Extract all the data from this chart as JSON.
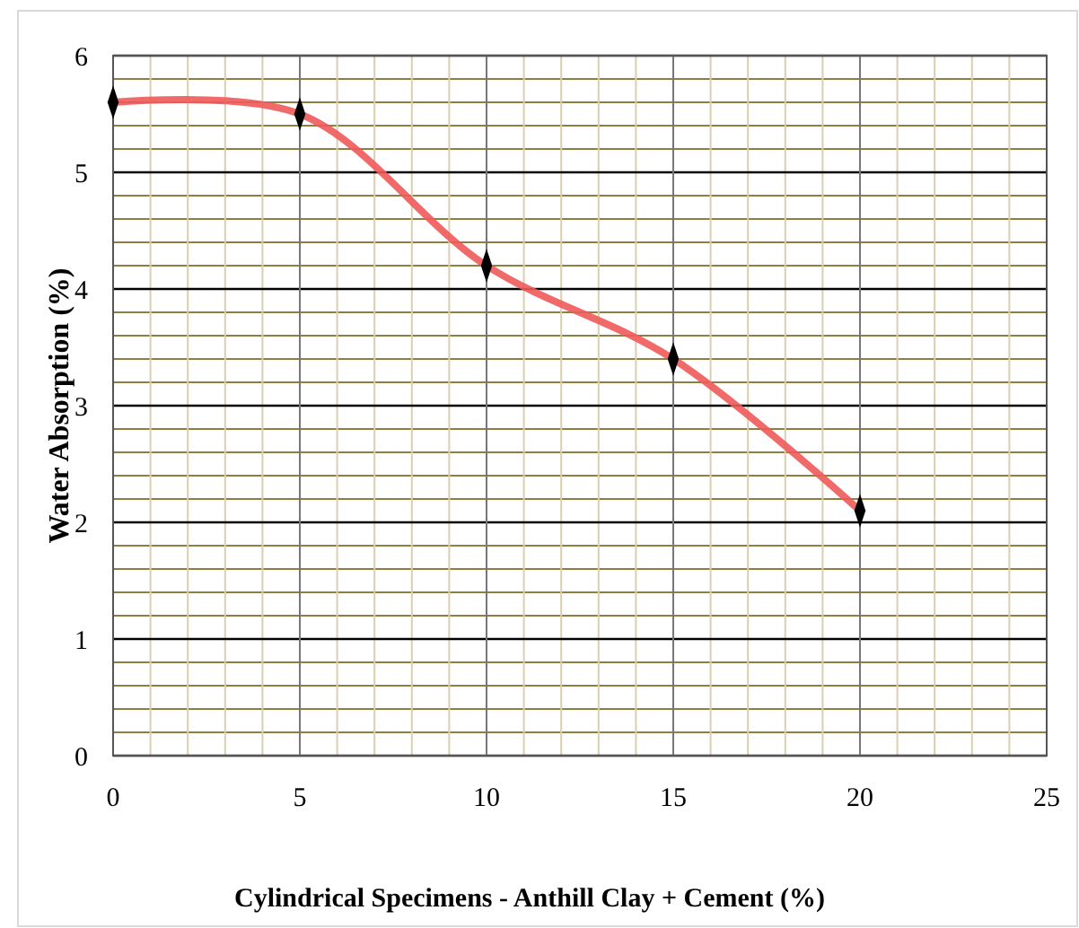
{
  "chart_data": {
    "type": "line",
    "xlabel": "Cylindrical Specimens - Anthill Clay +  Cement (%)",
    "ylabel": "Water Absorption (%)",
    "x": [
      0,
      5,
      10,
      15,
      20
    ],
    "series": [
      {
        "color": "#f05a5a",
        "values": [
          5.6,
          5.5,
          4.2,
          3.4,
          2.1
        ]
      }
    ],
    "xlim": [
      0,
      25
    ],
    "xticks": [
      0,
      {
        "value": 1,
        "label": null
      },
      {
        "value": 2,
        "label": null
      },
      {
        "value": 3,
        "label": null
      },
      {
        "value": 4,
        "label": null
      },
      5,
      {
        "value": 6,
        "label": null
      },
      {
        "value": 7,
        "label": null
      },
      {
        "value": 8,
        "label": null
      },
      {
        "value": 9,
        "label": null
      },
      10,
      {
        "value": 11,
        "label": null
      },
      {
        "value": 12,
        "label": null
      },
      {
        "value": 13,
        "label": null
      },
      {
        "value": 14,
        "label": null
      },
      15,
      {
        "value": 16,
        "label": null
      },
      {
        "value": 17,
        "label": null
      },
      {
        "value": 18,
        "label": null
      },
      {
        "value": 19,
        "label": null
      },
      20,
      {
        "value": 21,
        "label": null
      },
      {
        "value": 22,
        "label": null
      },
      {
        "value": 23,
        "label": null
      },
      {
        "value": 24,
        "label": null
      },
      25
    ],
    "ylim": [
      0,
      6
    ],
    "yticks": [
      0,
      {
        "value": 0.2,
        "label": null
      },
      {
        "value": 0.4,
        "label": null
      },
      {
        "value": 0.6,
        "label": null
      },
      {
        "value": 0.8,
        "label": null
      },
      1,
      {
        "value": 1.2,
        "label": null
      },
      {
        "value": 1.4,
        "label": null
      },
      {
        "value": 1.6,
        "label": null
      },
      {
        "value": 1.8,
        "label": null
      },
      2,
      {
        "value": 2.2,
        "label": null
      },
      {
        "value": 2.4,
        "label": null
      },
      {
        "value": 2.6,
        "label": null
      },
      {
        "value": 2.8,
        "label": null
      },
      3,
      {
        "value": 3.2,
        "label": null
      },
      {
        "value": 3.4,
        "label": null
      },
      {
        "value": 3.6,
        "label": null
      },
      {
        "value": 3.8,
        "label": null
      },
      4,
      {
        "value": 4.2,
        "label": null
      },
      {
        "value": 4.4,
        "label": null
      },
      {
        "value": 4.6,
        "label": null
      },
      {
        "value": 4.8,
        "label": null
      },
      5,
      {
        "value": 5.2,
        "label": null
      },
      {
        "value": 5.4,
        "label": null
      },
      {
        "value": 5.6,
        "label": null
      },
      {
        "value": 5.8,
        "label": null
      },
      6
    ],
    "grid": true,
    "marker": "diamond",
    "line_style": "solid"
  }
}
